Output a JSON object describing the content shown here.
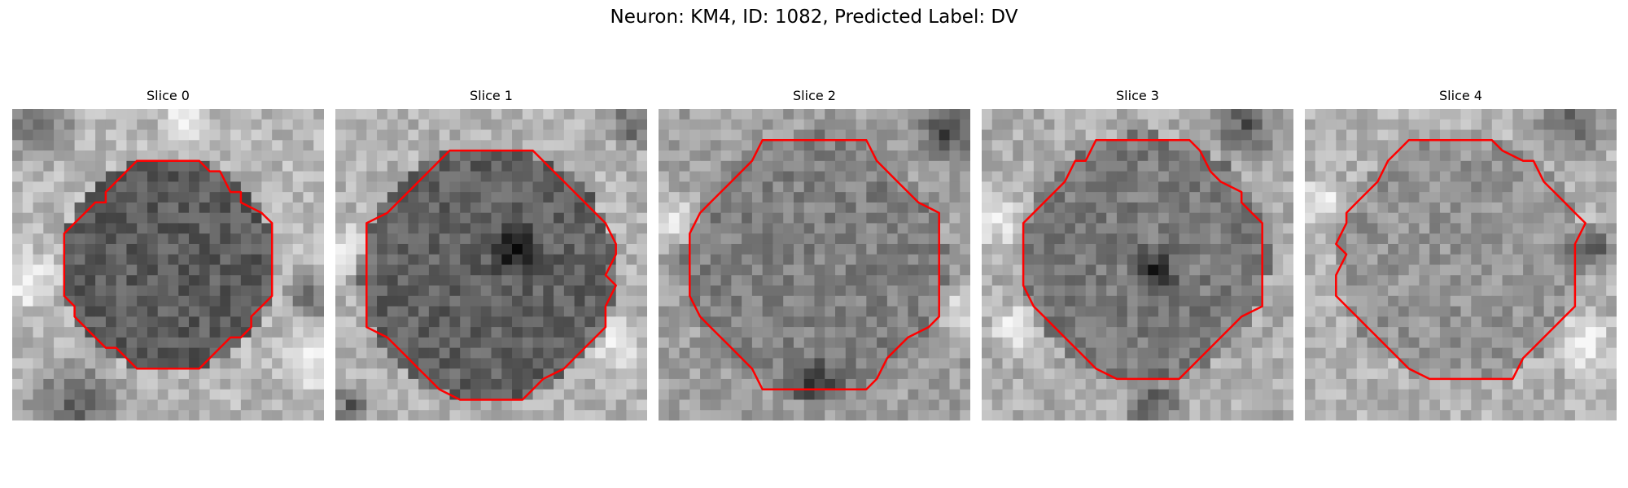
{
  "figure": {
    "title": "Neuron: KM4, ID: 1082, Predicted Label: DV"
  },
  "panels": [
    {
      "label": "Slice 0"
    },
    {
      "label": "Slice 1"
    },
    {
      "label": "Slice 2"
    },
    {
      "label": "Slice 3"
    },
    {
      "label": "Slice 4"
    }
  ],
  "colors": {
    "contour": "#ff0000",
    "background": "#ffffff"
  }
}
